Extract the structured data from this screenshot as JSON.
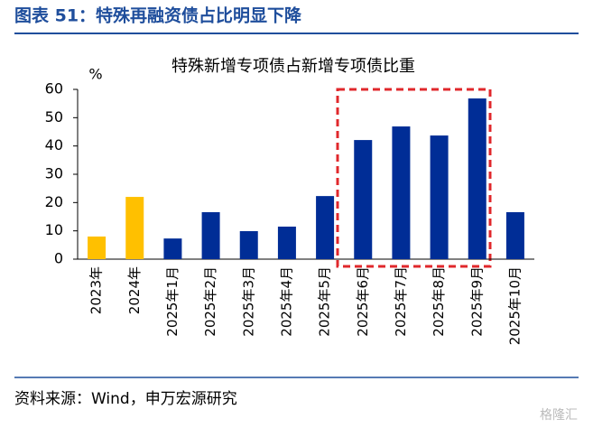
{
  "header": {
    "title": "图表 51：特殊再融资债占比明显下降"
  },
  "chart_data": {
    "type": "bar",
    "title": "特殊新增专项债占新增专项债比重",
    "y_unit": "%",
    "categories": [
      "2023年",
      "2024年",
      "2025年1月",
      "2025年2月",
      "2025年3月",
      "2025年4月",
      "2025年5月",
      "2025年6月",
      "2025年7月",
      "2025年8月",
      "2025年9月",
      "2025年10月"
    ],
    "values": [
      8.0,
      22.0,
      7.3,
      16.6,
      9.9,
      11.5,
      22.3,
      42.1,
      46.9,
      43.7,
      56.8,
      16.6
    ],
    "colors": [
      "#FFC000",
      "#FFC000",
      "#002D96",
      "#002D96",
      "#002D96",
      "#002D96",
      "#002D96",
      "#002D96",
      "#002D96",
      "#002D96",
      "#002D96",
      "#002D96"
    ],
    "ylim": [
      0,
      60
    ],
    "yticks": [
      0,
      10,
      20,
      30,
      40,
      50,
      60
    ],
    "grid": false
  },
  "footer": {
    "source": "资料来源：Wind，申万宏源研究",
    "watermark": "格隆汇"
  }
}
